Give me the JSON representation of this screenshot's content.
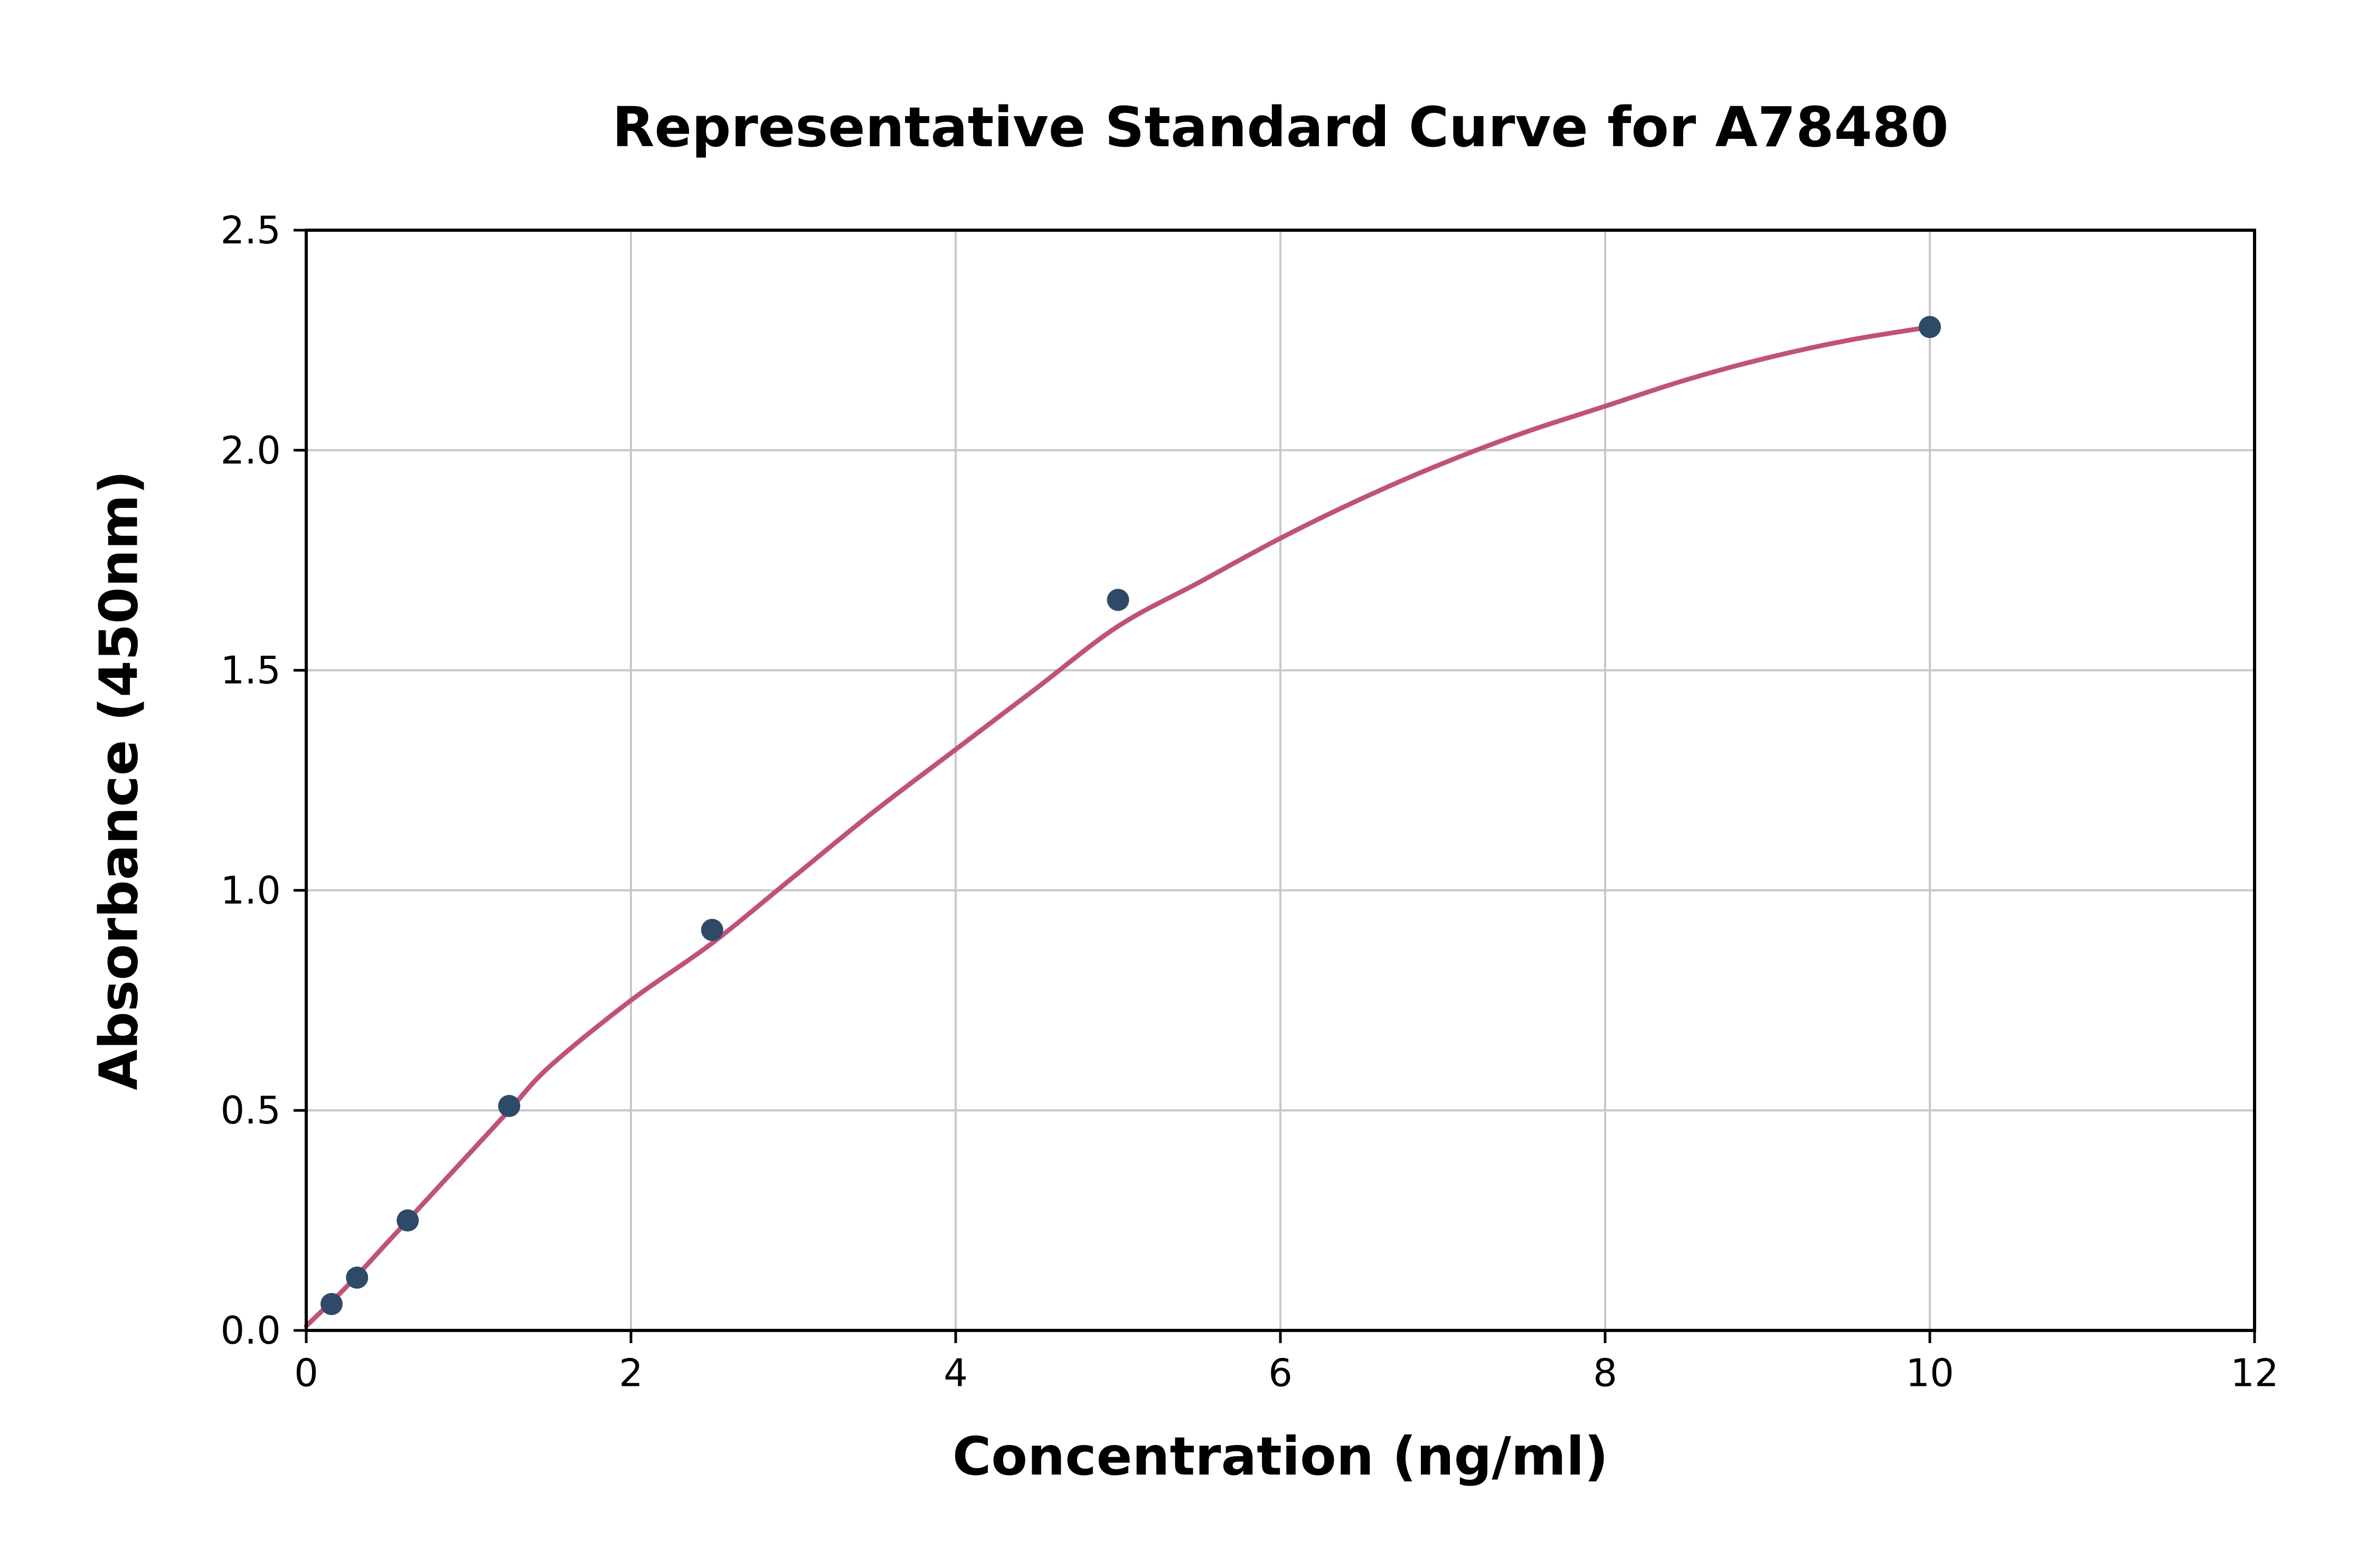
{
  "chart_data": {
    "type": "scatter",
    "title": "Representative Standard Curve for A78480",
    "xlabel": "Concentration (ng/ml)",
    "ylabel": "Absorbance (450nm)",
    "xlim": [
      0,
      12
    ],
    "ylim": [
      0,
      2.5
    ],
    "grid": true,
    "legend": "none",
    "grid_color": "#c8c8c8",
    "axis_color": "#000000",
    "x_ticks": [
      {
        "value": 0,
        "label": "0"
      },
      {
        "value": 2,
        "label": "2"
      },
      {
        "value": 4,
        "label": "4"
      },
      {
        "value": 6,
        "label": "6"
      },
      {
        "value": 8,
        "label": "8"
      },
      {
        "value": 10,
        "label": "10"
      },
      {
        "value": 12,
        "label": "12"
      }
    ],
    "y_ticks": [
      {
        "value": 0.0,
        "label": "0.0"
      },
      {
        "value": 0.5,
        "label": "0.5"
      },
      {
        "value": 1.0,
        "label": "1.0"
      },
      {
        "value": 1.5,
        "label": "1.5"
      },
      {
        "value": 2.0,
        "label": "2.0"
      },
      {
        "value": 2.5,
        "label": "2.5"
      }
    ],
    "series": [
      {
        "name": "fitted-curve",
        "type": "line",
        "color": "#c0527a",
        "points": [
          {
            "x": 0,
            "y": 0.01
          },
          {
            "x": 0.25,
            "y": 0.1
          },
          {
            "x": 0.5,
            "y": 0.2
          },
          {
            "x": 0.75,
            "y": 0.3
          },
          {
            "x": 1.0,
            "y": 0.4
          },
          {
            "x": 1.25,
            "y": 0.5
          },
          {
            "x": 1.5,
            "y": 0.6
          },
          {
            "x": 2.0,
            "y": 0.75
          },
          {
            "x": 2.5,
            "y": 0.88
          },
          {
            "x": 3.0,
            "y": 1.03
          },
          {
            "x": 3.5,
            "y": 1.18
          },
          {
            "x": 4.0,
            "y": 1.32
          },
          {
            "x": 4.5,
            "y": 1.46
          },
          {
            "x": 5.0,
            "y": 1.6
          },
          {
            "x": 5.5,
            "y": 1.7
          },
          {
            "x": 6.0,
            "y": 1.8
          },
          {
            "x": 6.5,
            "y": 1.89
          },
          {
            "x": 7.0,
            "y": 1.97
          },
          {
            "x": 7.5,
            "y": 2.04
          },
          {
            "x": 8.0,
            "y": 2.1
          },
          {
            "x": 8.5,
            "y": 2.16
          },
          {
            "x": 9.0,
            "y": 2.21
          },
          {
            "x": 9.5,
            "y": 2.25
          },
          {
            "x": 10.0,
            "y": 2.28
          }
        ]
      },
      {
        "name": "standards",
        "type": "scatter",
        "color": "#2e4a68",
        "points": [
          {
            "x": 0.156,
            "y": 0.06
          },
          {
            "x": 0.313,
            "y": 0.12
          },
          {
            "x": 0.625,
            "y": 0.25
          },
          {
            "x": 1.25,
            "y": 0.51
          },
          {
            "x": 2.5,
            "y": 0.91
          },
          {
            "x": 5,
            "y": 1.66
          },
          {
            "x": 10,
            "y": 2.28
          }
        ]
      }
    ]
  }
}
